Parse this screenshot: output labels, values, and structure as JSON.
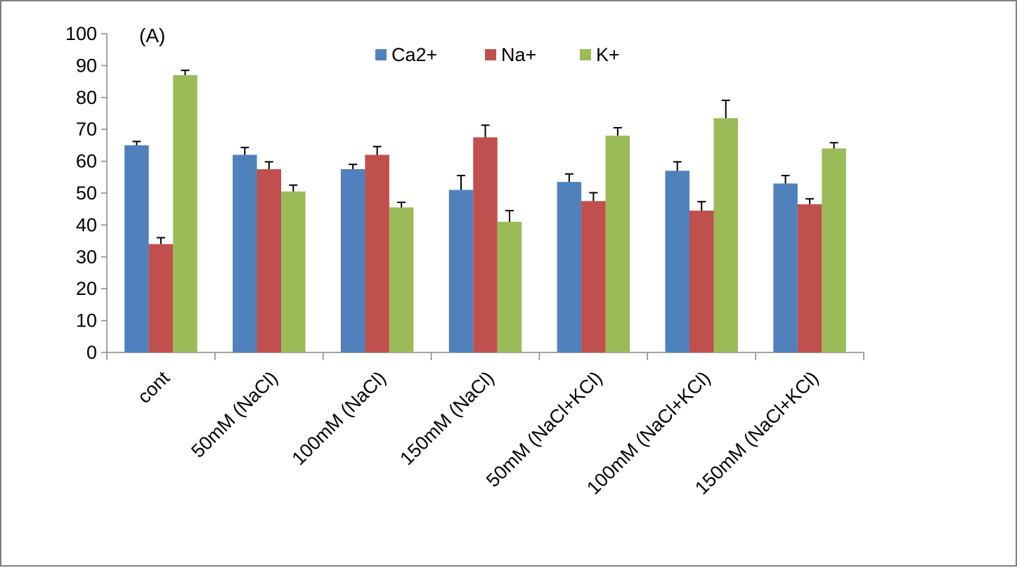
{
  "chart_data": {
    "type": "bar",
    "annotation": "(A)",
    "categories": [
      "cont",
      "50mM (NaCl)",
      "100mM (NaCl)",
      "150mM (NaCl)",
      "50mM (NaCl+KCl)",
      "100mM (NaCl+KCl)",
      "150mM (NaCl+KCl)"
    ],
    "series": [
      {
        "name": "Ca2+",
        "color": "#4f81bd",
        "values": [
          65,
          62,
          57.5,
          51,
          53.5,
          57,
          53
        ],
        "errors": [
          1.2,
          2.3,
          1.5,
          4.5,
          2.5,
          2.8,
          2.5
        ]
      },
      {
        "name": "Na+",
        "color": "#c0504d",
        "values": [
          34,
          57.5,
          62,
          67.5,
          47.5,
          44.5,
          46.5
        ],
        "errors": [
          2,
          2.3,
          2.6,
          3.8,
          2.6,
          2.8,
          1.7
        ]
      },
      {
        "name": "K+",
        "color": "#9bbb59",
        "values": [
          87,
          50.5,
          45.5,
          41,
          68,
          73.5,
          64
        ],
        "errors": [
          1.5,
          2,
          1.6,
          3.5,
          2.5,
          5.6,
          1.8
        ]
      }
    ],
    "ylim": [
      0,
      100
    ],
    "yticks": [
      0,
      10,
      20,
      30,
      40,
      50,
      60,
      70,
      80,
      90,
      100
    ],
    "xlabel": "",
    "ylabel": "",
    "grid": false,
    "legend": "top-center"
  }
}
